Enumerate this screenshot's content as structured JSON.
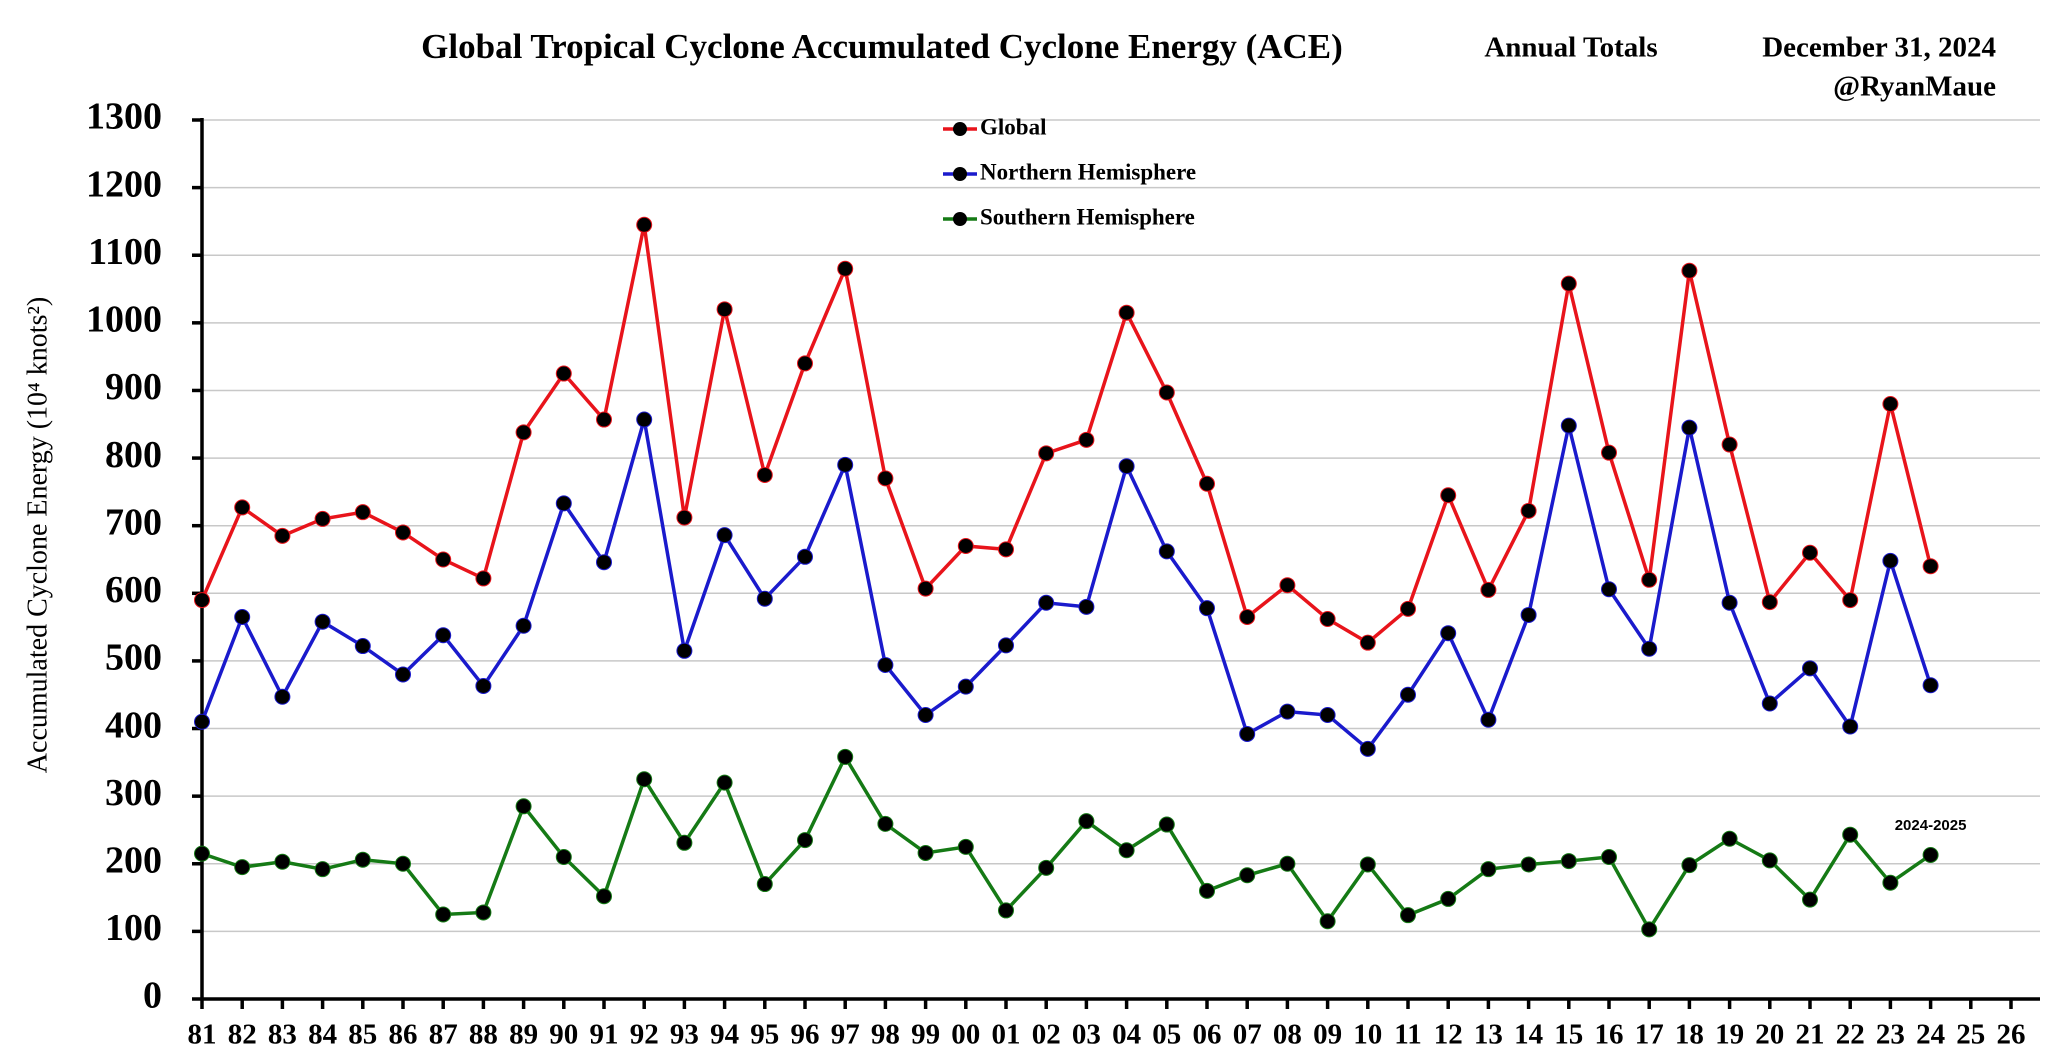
{
  "chart_data": {
    "type": "line",
    "title": "Global Tropical Cyclone Accumulated Cyclone Energy (ACE)",
    "subtitle": "Annual Totals",
    "date": "December 31, 2024",
    "author": "@RyanMaue",
    "y_label": "Accumulated Cyclone Energy (10⁴ knots²)",
    "annotation": "2024-2025",
    "categories": [
      "81",
      "82",
      "83",
      "84",
      "85",
      "86",
      "87",
      "88",
      "89",
      "90",
      "91",
      "92",
      "93",
      "94",
      "95",
      "96",
      "97",
      "98",
      "99",
      "00",
      "01",
      "02",
      "03",
      "04",
      "05",
      "06",
      "07",
      "08",
      "09",
      "10",
      "11",
      "12",
      "13",
      "14",
      "15",
      "16",
      "17",
      "18",
      "19",
      "20",
      "21",
      "22",
      "23",
      "24",
      "25",
      "26"
    ],
    "series": [
      {
        "name": "Global",
        "color": "#e8141b",
        "values": [
          590,
          727,
          685,
          710,
          720,
          690,
          650,
          622,
          838,
          925,
          857,
          1145,
          712,
          1020,
          775,
          940,
          1080,
          770,
          607,
          670,
          665,
          807,
          827,
          1015,
          897,
          762,
          565,
          612,
          562,
          527,
          577,
          745,
          605,
          722,
          1058,
          808,
          620,
          1077,
          820,
          587,
          660,
          590,
          880,
          640,
          null,
          null
        ]
      },
      {
        "name": "Northern Hemisphere",
        "color": "#1a1acc",
        "values": [
          410,
          565,
          447,
          558,
          522,
          480,
          538,
          463,
          552,
          733,
          646,
          857,
          515,
          686,
          592,
          654,
          790,
          494,
          420,
          462,
          523,
          586,
          580,
          788,
          662,
          578,
          392,
          425,
          420,
          370,
          450,
          541,
          413,
          568,
          848,
          606,
          518,
          845,
          586,
          437,
          489,
          403,
          648,
          464,
          null,
          null
        ]
      },
      {
        "name": "Southern Hemisphere",
        "color": "#157a15",
        "values": [
          215,
          195,
          203,
          192,
          206,
          200,
          125,
          128,
          285,
          210,
          152,
          325,
          231,
          320,
          170,
          235,
          358,
          259,
          216,
          225,
          131,
          194,
          263,
          220,
          258,
          160,
          183,
          200,
          115,
          199,
          124,
          148,
          192,
          199,
          204,
          210,
          103,
          198,
          237,
          205,
          147,
          243,
          172,
          213,
          null,
          null
        ]
      }
    ],
    "marker_color": "#000000",
    "ylim": [
      0,
      1300
    ],
    "yticks": [
      0,
      100,
      200,
      300,
      400,
      500,
      600,
      700,
      800,
      900,
      1000,
      1100,
      1200,
      1300
    ],
    "grid": true
  }
}
